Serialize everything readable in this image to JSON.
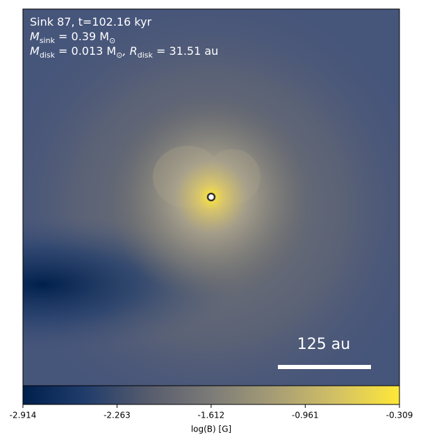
{
  "chart_data": {
    "type": "image",
    "annotation_lines": [
      [
        {
          "text": "Sink 87, t=102.16 kyr"
        }
      ],
      [
        {
          "text": "M"
        },
        {
          "sub": "sink"
        },
        {
          "text": " = 0.39 M"
        },
        {
          "sub": "⊙"
        }
      ],
      [
        {
          "text": "M"
        },
        {
          "sub": "disk"
        },
        {
          "text": " = 0.013 M"
        },
        {
          "sub": "⊙"
        },
        {
          "text": ", R"
        },
        {
          "sub": "disk"
        },
        {
          "text": " = 31.51 au"
        }
      ]
    ],
    "scale_bar_label": "125 au",
    "colorbar": {
      "label": "log(B) [G]",
      "lim": [
        -2.914,
        -0.309
      ],
      "ticks": [
        -2.914,
        -2.263,
        -1.612,
        -0.961,
        -0.309
      ],
      "colors": [
        "#00204c",
        "#213d6b",
        "#575c6d",
        "#7c7b78",
        "#a69d75",
        "#d3c164",
        "#fee838"
      ]
    }
  }
}
